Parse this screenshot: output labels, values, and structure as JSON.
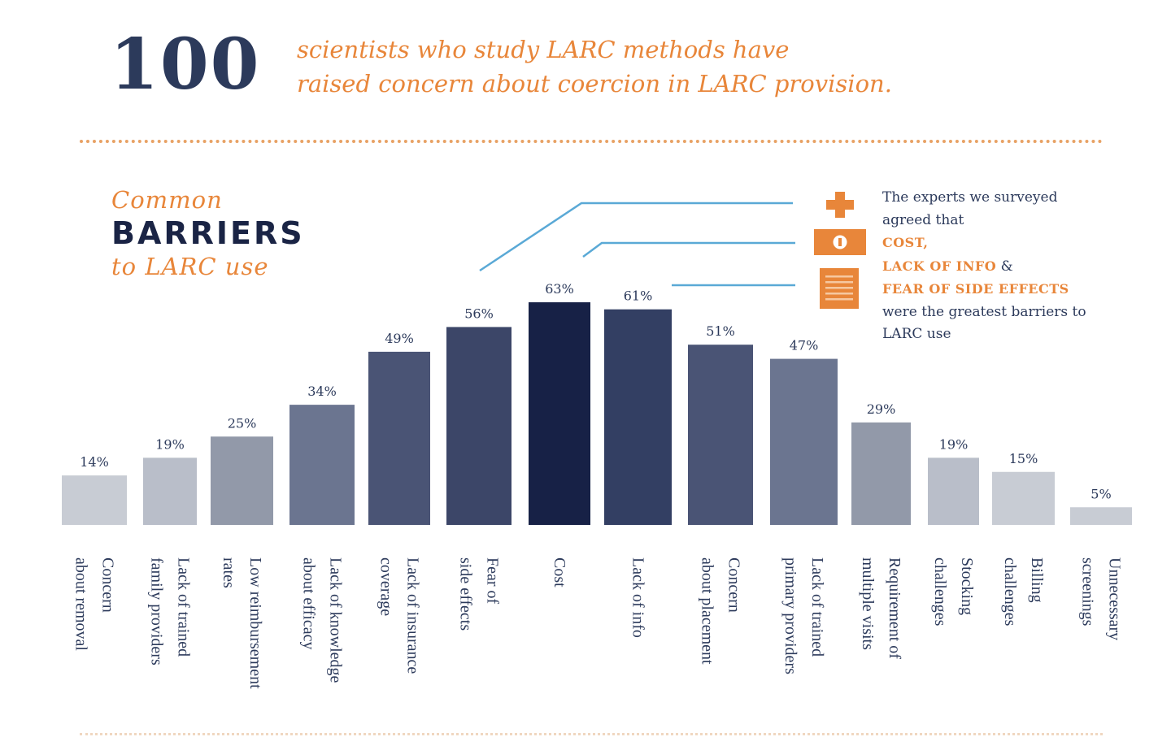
{
  "headline": {
    "number": "100",
    "line1": "scientists who study LARC methods have",
    "line2": "raised concern about coercion in LARC provision."
  },
  "title": {
    "line1": "Common",
    "line2": "BARRIERS",
    "line3": "to LARC use"
  },
  "callout": {
    "intro": "The experts we surveyed agreed that",
    "cost": "COST,",
    "lack_of_info": "LACK OF INFO",
    "amp": "&",
    "fear": "FEAR OF SIDE EFFECTS",
    "outro": "were the greatest barriers to LARC use",
    "icons": [
      "medical-cross-icon",
      "cash-icon",
      "document-icon"
    ]
  },
  "colors": {
    "accent": "#e8863a",
    "navy": "#1a2445",
    "leader_line": "#5aa9d6",
    "bar_palette": [
      "#c8ccd4",
      "#b9bec9",
      "#9299a9",
      "#6b7590",
      "#4a5475",
      "#3c4668",
      "#172146",
      "#333f63",
      "#4a5475",
      "#6b7590",
      "#9299a9",
      "#b9bec9",
      "#c8ccd4",
      "#c8ccd4"
    ]
  },
  "chart_data": {
    "type": "bar",
    "title": "Common BARRIERS to LARC use",
    "xlabel": "",
    "ylabel": "",
    "ylim": [
      0,
      70
    ],
    "grid": false,
    "categories": [
      [
        "Concern",
        "about removal"
      ],
      [
        "Lack of trained",
        "family providers"
      ],
      [
        "Low reimbursement",
        "rates"
      ],
      [
        "Lack of knowledge",
        "about efficacy"
      ],
      [
        "Lack of insurance",
        "coverage"
      ],
      [
        "Fear of",
        "side effects"
      ],
      [
        "Cost"
      ],
      [
        "Lack of info"
      ],
      [
        "Concern",
        "about placement"
      ],
      [
        "Lack of trained",
        "primary providers"
      ],
      [
        "Requirement of",
        "multiple visits"
      ],
      [
        "Stocking",
        "challenges"
      ],
      [
        "Billing",
        "challenges"
      ],
      [
        "Unnecessary",
        "screenings"
      ]
    ],
    "values": [
      14,
      19,
      25,
      34,
      49,
      56,
      63,
      61,
      51,
      47,
      29,
      19,
      15,
      5
    ],
    "value_labels": [
      "14%",
      "19%",
      "25%",
      "34%",
      "49%",
      "56%",
      "63%",
      "61%",
      "51%",
      "47%",
      "29%",
      "19%",
      "15%",
      "5%"
    ]
  }
}
